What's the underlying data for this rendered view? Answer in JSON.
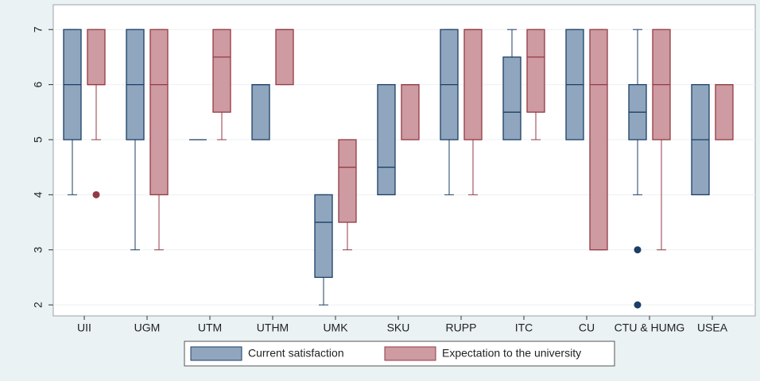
{
  "chart_data": {
    "type": "box",
    "categories": [
      "UII",
      "UGM",
      "UTM",
      "UTHM",
      "UMK",
      "SKU",
      "RUPP",
      "ITC",
      "CU",
      "CTU & HUMG",
      "USEA"
    ],
    "series": [
      {
        "name": "Current satisfaction",
        "color": "#8fa6be",
        "line_color": "#1c3f66",
        "low": [
          4,
          3,
          5,
          5,
          2,
          4,
          4,
          5,
          5,
          4,
          4
        ],
        "q1": [
          5,
          5,
          5,
          5,
          2.5,
          4,
          5,
          5,
          5,
          5,
          4
        ],
        "median": [
          6,
          6,
          5,
          6,
          3.5,
          4.5,
          6,
          5.5,
          6,
          5.5,
          5
        ],
        "q3": [
          7,
          7,
          5,
          6,
          4,
          6,
          7,
          6.5,
          7,
          6,
          6
        ],
        "high": [
          7,
          7,
          5,
          6,
          4,
          6,
          7,
          7,
          7,
          7,
          6
        ],
        "outliers": [
          [],
          [],
          [],
          [],
          [],
          [],
          [],
          [],
          [],
          [
            3,
            2
          ],
          []
        ]
      },
      {
        "name": "Expectation to the university",
        "color": "#cd9ba1",
        "line_color": "#943a44",
        "low": [
          5,
          3,
          5,
          6,
          3,
          5,
          4,
          5,
          3,
          3,
          5
        ],
        "q1": [
          6,
          4,
          5.5,
          6,
          3.5,
          5,
          5,
          5.5,
          3,
          5,
          5
        ],
        "median": [
          6,
          6,
          6.5,
          7,
          4.5,
          6,
          7,
          6.5,
          6,
          6,
          6
        ],
        "q3": [
          7,
          7,
          7,
          7,
          5,
          6,
          7,
          7,
          7,
          7,
          6
        ],
        "high": [
          7,
          7,
          7,
          7,
          5,
          6,
          7,
          7,
          7,
          7,
          6
        ],
        "outliers": [
          [
            4
          ],
          [],
          [],
          [],
          [],
          [],
          [],
          [],
          [],
          [],
          []
        ]
      }
    ],
    "ylim": [
      1.8,
      7.45
    ],
    "yticks": [
      2,
      3,
      4,
      5,
      6,
      7
    ],
    "grid": true,
    "legend": "bottom"
  }
}
